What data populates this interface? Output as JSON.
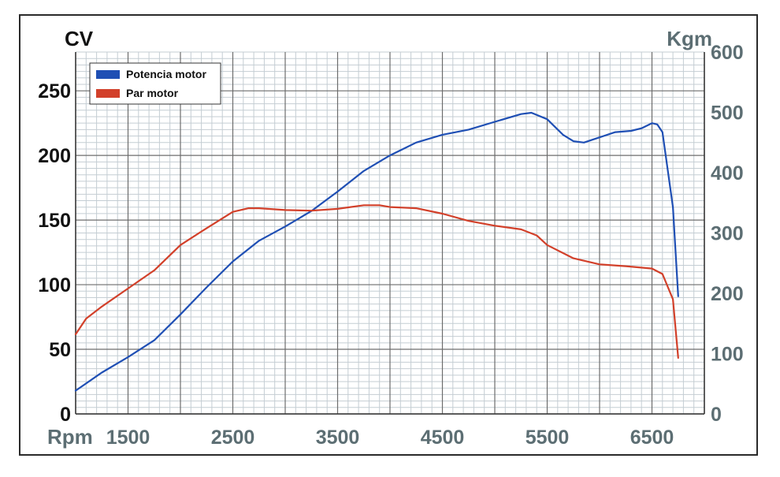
{
  "chart_data": {
    "type": "line",
    "title": "",
    "xlabel": "Rpm",
    "ylabel": "CV",
    "y2label": "Kgm",
    "xlim": [
      1000,
      7000
    ],
    "ylim": [
      0,
      280
    ],
    "y2lim": [
      0,
      600
    ],
    "x_ticks": [
      1500,
      2500,
      3500,
      4500,
      5500,
      6500
    ],
    "x_tick_labels": [
      "1500",
      "2500",
      "3500",
      "4500",
      "5500",
      "6500"
    ],
    "y_ticks": [
      0,
      50,
      100,
      150,
      200,
      250
    ],
    "y_tick_labels": [
      "0",
      "50",
      "100",
      "150",
      "200",
      "250"
    ],
    "y2_ticks": [
      0,
      100,
      200,
      300,
      400,
      500,
      600
    ],
    "y2_tick_labels": [
      "0",
      "100",
      "200",
      "300",
      "400",
      "500",
      "600"
    ],
    "grid": true,
    "legend_position": "top-left",
    "colors": {
      "axis_left": "#111111",
      "axis_right": "#5c6e73",
      "grid_minor": "#c4cdd3",
      "grid_major": "#6d6d6d"
    },
    "series": [
      {
        "name": "Potencia motor",
        "axis": "left",
        "color": "#1f4fb4",
        "x": [
          1000,
          1250,
          1500,
          1750,
          2000,
          2250,
          2500,
          2750,
          3000,
          3250,
          3500,
          3750,
          4000,
          4250,
          4500,
          4750,
          5000,
          5250,
          5350,
          5500,
          5650,
          5750,
          5850,
          6000,
          6150,
          6300,
          6400,
          6500,
          6550,
          6600,
          6700,
          6750
        ],
        "values": [
          18,
          32,
          44,
          57,
          77,
          98,
          118,
          134,
          145,
          157,
          172,
          188,
          200,
          210,
          216,
          220,
          226,
          232,
          233,
          228,
          216,
          211,
          210,
          214,
          218,
          219,
          221,
          225,
          224,
          218,
          160,
          91
        ]
      },
      {
        "name": "Par motor",
        "axis": "right",
        "color": "#d2402a",
        "x": [
          1000,
          1100,
          1250,
          1500,
          1750,
          2000,
          2250,
          2500,
          2650,
          2750,
          3000,
          3250,
          3500,
          3750,
          3900,
          4000,
          4250,
          4500,
          4750,
          5000,
          5250,
          5400,
          5500,
          5750,
          6000,
          6250,
          6500,
          6600,
          6700,
          6750
        ],
        "values": [
          132,
          158,
          178,
          208,
          238,
          280,
          308,
          335,
          341,
          341,
          338,
          337,
          340,
          346,
          346,
          343,
          341,
          332,
          320,
          312,
          306,
          296,
          280,
          258,
          248,
          245,
          241,
          232,
          190,
          93
        ]
      }
    ]
  }
}
